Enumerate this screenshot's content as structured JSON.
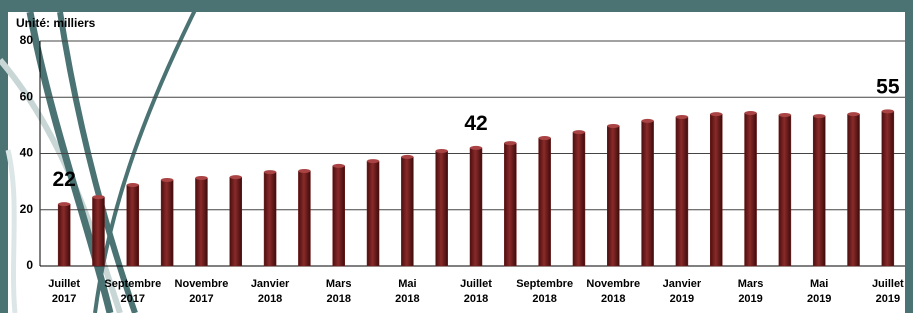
{
  "chart_data": {
    "type": "bar",
    "y_label": "Unité: milliers",
    "categories": [
      "Juillet 2017",
      null,
      "Septembre 2017",
      null,
      "Novembre 2017",
      null,
      "Janvier 2018",
      null,
      "Mars 2018",
      null,
      "Mai 2018",
      null,
      "Juillet 2018",
      null,
      "Septembre 2018",
      null,
      "Novembre 2018",
      null,
      "Janvier 2019",
      null,
      "Mars 2019",
      null,
      "Mai 2019",
      null,
      "Juillet 2019"
    ],
    "values": [
      22,
      24.5,
      28.8,
      30.6,
      31.3,
      31.6,
      33.4,
      33.8,
      35.6,
      37.3,
      38.8,
      40.9,
      42,
      43.7,
      45.5,
      47.6,
      49.8,
      51.6,
      53,
      54,
      54.4,
      53.7,
      53.3,
      54,
      55
    ],
    "value_labels": [
      "22",
      null,
      null,
      null,
      null,
      null,
      null,
      null,
      null,
      null,
      null,
      null,
      "42",
      null,
      null,
      null,
      null,
      null,
      null,
      null,
      null,
      null,
      null,
      null,
      "55"
    ],
    "color": "#6e1c1c",
    "ylim": [
      0,
      80
    ],
    "yticks": [
      0,
      20,
      40,
      60,
      80
    ],
    "grid": true
  }
}
